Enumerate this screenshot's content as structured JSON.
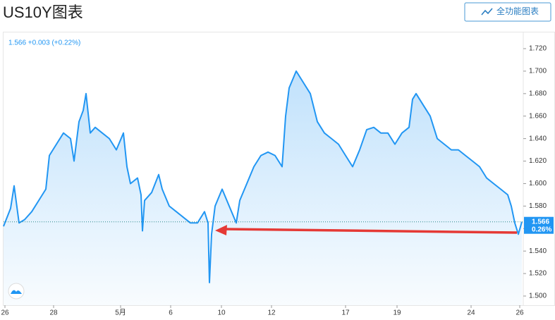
{
  "chart_data": {
    "type": "line",
    "title": "US10Y图表",
    "button": "全功能图表",
    "quote": "1.566 +0.003 (+0.22%)",
    "last_price": {
      "value": 1.566,
      "label": "1.566"
    },
    "last_change": "0.26%",
    "color": "#2196f3",
    "x": [
      5,
      15,
      20,
      27,
      35,
      45,
      55,
      65,
      70,
      80,
      90,
      100,
      105,
      112,
      118,
      122,
      128,
      135,
      145,
      155,
      165,
      175,
      180,
      185,
      195,
      200,
      202,
      205,
      215,
      225,
      230,
      240,
      250,
      260,
      270,
      280,
      290,
      295,
      297,
      300,
      305,
      315,
      325,
      335,
      340,
      350,
      360,
      370,
      380,
      390,
      400,
      405,
      410,
      420,
      430,
      440,
      450,
      460,
      470,
      480,
      490,
      500,
      510,
      520,
      530,
      540,
      550,
      560,
      570,
      580,
      585,
      590,
      600,
      610,
      620,
      630,
      640,
      650,
      660,
      670,
      680,
      690,
      700,
      710,
      720,
      725,
      730,
      735,
      740
    ],
    "values": [
      1.562,
      1.578,
      1.598,
      1.565,
      1.568,
      1.575,
      1.585,
      1.595,
      1.625,
      1.635,
      1.645,
      1.64,
      1.62,
      1.655,
      1.665,
      1.68,
      1.645,
      1.65,
      1.645,
      1.64,
      1.63,
      1.645,
      1.615,
      1.6,
      1.605,
      1.59,
      1.558,
      1.585,
      1.592,
      1.608,
      1.595,
      1.58,
      1.575,
      1.57,
      1.565,
      1.565,
      1.575,
      1.565,
      1.512,
      1.555,
      1.58,
      1.595,
      1.58,
      1.565,
      1.585,
      1.6,
      1.615,
      1.625,
      1.628,
      1.625,
      1.615,
      1.66,
      1.685,
      1.7,
      1.69,
      1.68,
      1.655,
      1.645,
      1.64,
      1.635,
      1.625,
      1.615,
      1.63,
      1.648,
      1.65,
      1.645,
      1.645,
      1.635,
      1.645,
      1.65,
      1.675,
      1.68,
      1.67,
      1.66,
      1.64,
      1.635,
      1.63,
      1.63,
      1.625,
      1.62,
      1.615,
      1.605,
      1.6,
      1.595,
      1.59,
      1.58,
      1.565,
      1.555,
      1.566
    ],
    "xlim": [
      5,
      742
    ],
    "xticks": [
      {
        "value": 7,
        "label": "26"
      },
      {
        "value": 76,
        "label": "28"
      },
      {
        "value": 171,
        "label": "5月"
      },
      {
        "value": 242,
        "label": "6"
      },
      {
        "value": 314,
        "label": "10"
      },
      {
        "value": 385,
        "label": "12"
      },
      {
        "value": 490,
        "label": "17"
      },
      {
        "value": 563,
        "label": "19"
      },
      {
        "value": 668,
        "label": "24"
      },
      {
        "value": 737,
        "label": "26"
      }
    ],
    "ylim": [
      1.5,
      1.72
    ],
    "yticks": [
      {
        "value": 1.5,
        "label": "1.500"
      },
      {
        "value": 1.52,
        "label": "1.520"
      },
      {
        "value": 1.54,
        "label": "1.540"
      },
      {
        "value": 1.56,
        "label": "1.560"
      },
      {
        "value": 1.58,
        "label": "1.580"
      },
      {
        "value": 1.6,
        "label": "1.600"
      },
      {
        "value": 1.62,
        "label": "1.620"
      },
      {
        "value": 1.64,
        "label": "1.640"
      },
      {
        "value": 1.66,
        "label": "1.660"
      },
      {
        "value": 1.68,
        "label": "1.680"
      },
      {
        "value": 1.7,
        "label": "1.700"
      },
      {
        "value": 1.72,
        "label": "1.720"
      }
    ]
  }
}
